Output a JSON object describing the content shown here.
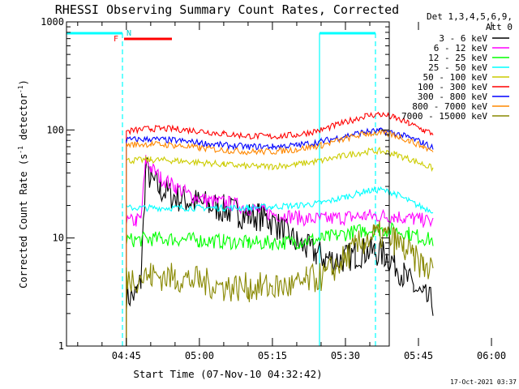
{
  "chart_data": {
    "type": "line",
    "title": "RHESSI Observing Summary Count Rates, Corrected",
    "xlabel": "Start Time (07-Nov-10 04:32:42)",
    "ylabel": "Corrected Count Rate (s",
    "ylabel_sup1": "-1",
    "ylabel_mid": " detector",
    "ylabel_sup2": "-1",
    "ylabel_end": ")",
    "yscale": "log",
    "ylim": [
      1,
      1000
    ],
    "y_ticks": [
      {
        "value": 1,
        "label": "1"
      },
      {
        "value": 10,
        "label": "10"
      },
      {
        "value": 100,
        "label": "100"
      },
      {
        "value": 1000,
        "label": "1000"
      }
    ],
    "xlim_min": [
      32.7,
      99.0
    ],
    "x_ticks": [
      {
        "value": 45,
        "label": "04:45"
      },
      {
        "value": 60,
        "label": "05:00"
      },
      {
        "value": 75,
        "label": "05:15"
      },
      {
        "value": 90,
        "label": "05:30"
      },
      {
        "value": 105,
        "label": "05:45"
      },
      {
        "value": 120,
        "label": "06:00"
      }
    ],
    "legend_header": [
      "Det 1,3,4,5,6,9,",
      "Att 0"
    ],
    "series": [
      {
        "name": "3 - 6 keV",
        "color": "#000000",
        "x": [
          45,
          47,
          48,
          49,
          50,
          52,
          55,
          58,
          62,
          66,
          68,
          70,
          72,
          74,
          76,
          78,
          80,
          82,
          84,
          86,
          88,
          90,
          92,
          94,
          96,
          98,
          100,
          102,
          104,
          106,
          108
        ],
        "y": [
          2.8,
          3.0,
          4.0,
          45,
          35,
          28,
          24,
          22,
          20,
          18,
          17,
          16,
          16,
          15,
          13,
          11,
          9,
          8,
          7.2,
          6.5,
          6.2,
          6.5,
          7.0,
          7.5,
          7.5,
          7.0,
          6.0,
          4.5,
          3.5,
          2.8,
          2.5
        ]
      },
      {
        "name": "6 - 12 keV",
        "color": "#ff00ff",
        "x": [
          45,
          47,
          48,
          49,
          50,
          52,
          55,
          58,
          62,
          66,
          70,
          74,
          78,
          82,
          86,
          90,
          94,
          96,
          98,
          100,
          102,
          104,
          106,
          108
        ],
        "y": [
          14,
          14.5,
          15,
          52,
          45,
          36,
          30,
          25,
          22,
          21,
          19,
          17,
          16,
          15,
          15,
          15.5,
          16,
          16,
          16,
          16,
          15.5,
          15,
          14.5,
          14
        ]
      },
      {
        "name": "12 - 25 keV",
        "color": "#00ff00",
        "x": [
          45,
          50,
          55,
          60,
          65,
          70,
          75,
          80,
          85,
          88,
          91,
          94,
          97,
          100,
          103,
          106,
          108
        ],
        "y": [
          9.5,
          9.8,
          9.8,
          9.5,
          9.3,
          9.0,
          9.0,
          9.2,
          9.8,
          10.5,
          11.2,
          11.8,
          12.0,
          11.8,
          11.0,
          10.0,
          9.5
        ]
      },
      {
        "name": "25 - 50 keV",
        "color": "#00ffff",
        "x": [
          45,
          50,
          55,
          60,
          65,
          70,
          75,
          80,
          85,
          90,
          94,
          97,
          100,
          103,
          106,
          108
        ],
        "y": [
          19,
          19,
          19,
          19,
          19,
          19,
          19.5,
          20,
          21,
          24,
          27,
          28,
          26,
          22,
          19,
          18
        ]
      },
      {
        "name": "50 - 100 keV",
        "color": "#cccc00",
        "x": [
          45,
          50,
          55,
          60,
          65,
          70,
          75,
          80,
          85,
          90,
          94,
          97,
          100,
          103,
          106,
          108
        ],
        "y": [
          52,
          53,
          52,
          50,
          48,
          46,
          46,
          48,
          52,
          58,
          63,
          64,
          60,
          54,
          48,
          44
        ]
      },
      {
        "name": "100 - 300 keV",
        "color": "#ff0000",
        "x": [
          45,
          50,
          55,
          60,
          65,
          70,
          75,
          80,
          85,
          90,
          94,
          97,
          100,
          103,
          106,
          108
        ],
        "y": [
          97,
          103,
          102,
          98,
          92,
          88,
          87,
          90,
          100,
          118,
          135,
          140,
          130,
          115,
          100,
          92
        ]
      },
      {
        "name": "300 - 800 keV",
        "color": "#0000ff",
        "x": [
          45,
          50,
          55,
          60,
          65,
          70,
          75,
          80,
          85,
          90,
          94,
          97,
          100,
          103,
          106,
          108
        ],
        "y": [
          81,
          82,
          80,
          76,
          72,
          70,
          70,
          72,
          78,
          88,
          96,
          98,
          94,
          85,
          76,
          68
        ]
      },
      {
        "name": "800 - 7000 keV",
        "color": "#ff8800",
        "x": [
          45,
          50,
          55,
          60,
          65,
          70,
          75,
          80,
          85,
          90,
          94,
          97,
          100,
          103,
          106,
          108
        ],
        "y": [
          73,
          74,
          72,
          68,
          65,
          63,
          63,
          66,
          72,
          83,
          92,
          94,
          90,
          80,
          70,
          63
        ]
      },
      {
        "name": "7000 - 15000 keV",
        "color": "#888800",
        "x": [
          45,
          50,
          55,
          60,
          65,
          70,
          75,
          80,
          82,
          86,
          88,
          90,
          92,
          94,
          96,
          98,
          100,
          102,
          104,
          106,
          108
        ],
        "y": [
          4.2,
          4.5,
          4.3,
          4.0,
          3.5,
          3.5,
          3.5,
          3.6,
          4.0,
          4.5,
          5.5,
          6.5,
          8.0,
          9.5,
          10.5,
          10.5,
          9.5,
          8.0,
          6.5,
          5.5,
          5.0
        ]
      }
    ],
    "annotations": {
      "flag_F": "F",
      "flag_N": "N",
      "timestamp": "17-Oct-2021 03:37"
    }
  }
}
